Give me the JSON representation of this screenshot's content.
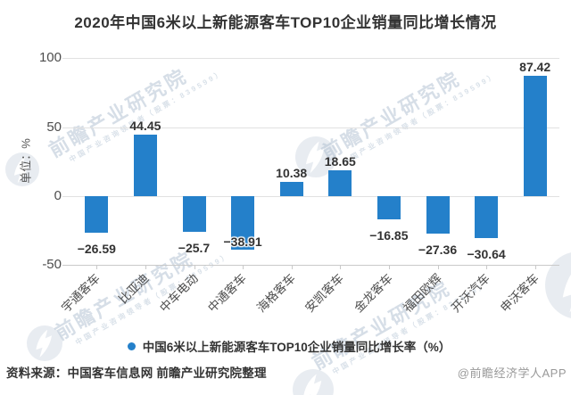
{
  "title": "2020年中国6米以上新能源客车TOP10企业销量同比增长情况",
  "chart_data": {
    "type": "bar",
    "categories": [
      "宇通客车",
      "比亚迪",
      "中车电动",
      "中通客车",
      "海格客车",
      "安凯客车",
      "金龙客车",
      "福田欧辉",
      "开沃汽车",
      "申沃客车"
    ],
    "values": [
      -26.59,
      44.45,
      -25.7,
      -38.91,
      10.38,
      18.65,
      -16.85,
      -27.36,
      -30.64,
      87.42
    ],
    "title": "2020年中国6米以上新能源客车TOP10企业销量同比增长情况",
    "xlabel": "",
    "ylabel": "单位：%",
    "yticks": [
      100,
      50,
      0,
      -50
    ],
    "ylim": [
      -50,
      100
    ],
    "grid": true,
    "legend_position": "bottom",
    "series_name": "中国6米以上新能源客车TOP10企业销量同比增长率（%）"
  },
  "legend": {
    "label": "中国6米以上新能源客车TOP10企业销量同比增长率（%）"
  },
  "footer": {
    "source": "资料来源：中国客车信息网 前瞻产业研究院整理",
    "credit": "@前瞻经济学人APP"
  },
  "watermark": {
    "text": "前瞻产业研究院",
    "subtext": "中国产业咨询领导者（股票：839599）"
  },
  "colors": {
    "bar": "#2480ca",
    "title_text": "#333333",
    "value_label": "#333333",
    "axis_text": "#4d4d4d",
    "grid": "#e1e1e1",
    "source_text": "#333333",
    "credit_text": "#999999",
    "watermark": "#b0c0d1"
  }
}
